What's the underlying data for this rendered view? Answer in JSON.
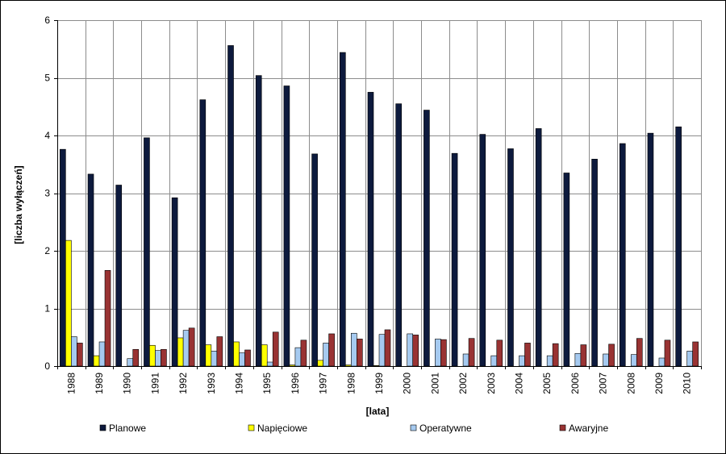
{
  "chart_data": {
    "type": "bar",
    "title": "",
    "xlabel": "[lata]",
    "ylabel": "[liczba wyłączeń]",
    "ylim": [
      0,
      6
    ],
    "yticks": [
      "0",
      "1",
      "2",
      "3",
      "4",
      "5",
      "6"
    ],
    "grid": true,
    "legend_position": "bottom",
    "categories": [
      "1988",
      "1989",
      "1990",
      "1991",
      "1992",
      "1993",
      "1994",
      "1995",
      "1996",
      "1997",
      "1998",
      "1999",
      "2000",
      "2001",
      "2002",
      "2003",
      "2004",
      "2005",
      "2006",
      "2007",
      "2008",
      "2009",
      "2010"
    ],
    "series": [
      {
        "name": "Planowe",
        "color": "#0d1a3d",
        "values": [
          3.76,
          3.33,
          3.14,
          3.96,
          2.92,
          4.62,
          5.56,
          5.04,
          4.86,
          3.68,
          5.44,
          4.75,
          4.55,
          4.44,
          3.69,
          4.02,
          3.77,
          4.12,
          3.35,
          3.59,
          3.86,
          4.04,
          4.15
        ]
      },
      {
        "name": "Napięciowe",
        "color": "#ffff00",
        "values": [
          2.18,
          0.18,
          0.0,
          0.36,
          0.49,
          0.37,
          0.42,
          0.37,
          0.02,
          0.1,
          0.02,
          0.01,
          0.0,
          0.0,
          0.0,
          0.0,
          0.0,
          0.0,
          0.0,
          0.0,
          0.0,
          0.0,
          0.0
        ]
      },
      {
        "name": "Operatywne",
        "color": "#a6caf0",
        "values": [
          0.51,
          0.42,
          0.13,
          0.27,
          0.62,
          0.26,
          0.23,
          0.07,
          0.32,
          0.4,
          0.57,
          0.55,
          0.56,
          0.47,
          0.21,
          0.18,
          0.18,
          0.18,
          0.22,
          0.21,
          0.2,
          0.14,
          0.26
        ]
      },
      {
        "name": "Awaryjne",
        "color": "#993333",
        "values": [
          0.4,
          1.66,
          0.29,
          0.29,
          0.66,
          0.51,
          0.28,
          0.59,
          0.45,
          0.56,
          0.47,
          0.63,
          0.54,
          0.46,
          0.48,
          0.45,
          0.4,
          0.39,
          0.37,
          0.38,
          0.48,
          0.45,
          0.42
        ]
      }
    ]
  }
}
